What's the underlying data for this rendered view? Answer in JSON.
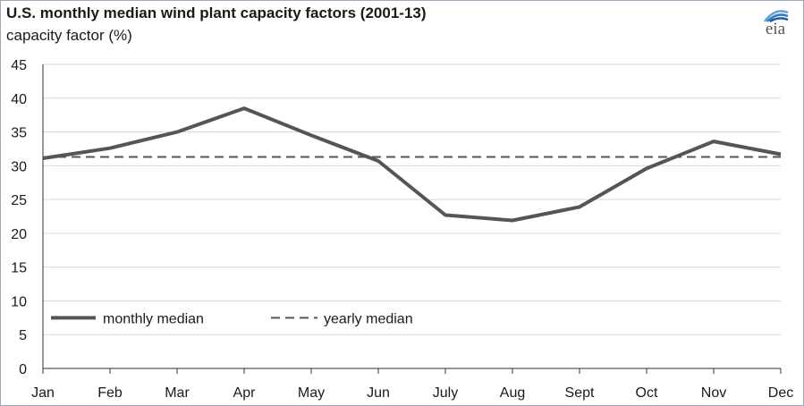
{
  "header": {
    "title": "U.S. monthly median wind plant capacity factors (2001-13)",
    "ylabel": "capacity factor (%)"
  },
  "logo": {
    "text": "eia",
    "arc_colors": [
      "#5aa1d8",
      "#2f7fc0",
      "#1f5e9c"
    ]
  },
  "colors": {
    "line": "#555555",
    "grid": "#d9d9d9",
    "axis": "#333333"
  },
  "chart_data": {
    "type": "line",
    "categories": [
      "Jan",
      "Feb",
      "Mar",
      "Apr",
      "May",
      "Jun",
      "July",
      "Aug",
      "Sept",
      "Oct",
      "Nov",
      "Dec"
    ],
    "series": [
      {
        "name": "monthly median",
        "style": "solid",
        "values": [
          31.1,
          32.6,
          35.0,
          38.5,
          34.5,
          30.7,
          22.7,
          21.9,
          23.9,
          29.6,
          33.6,
          31.7
        ]
      },
      {
        "name": "yearly median",
        "style": "dashed",
        "values": [
          31.3,
          31.3,
          31.3,
          31.3,
          31.3,
          31.3,
          31.3,
          31.3,
          31.3,
          31.3,
          31.3,
          31.3
        ]
      }
    ],
    "yticks": [
      0,
      5,
      10,
      15,
      20,
      25,
      30,
      35,
      40,
      45
    ],
    "ylim": [
      0,
      45
    ],
    "grid": true,
    "legend_position": "bottom-left"
  }
}
